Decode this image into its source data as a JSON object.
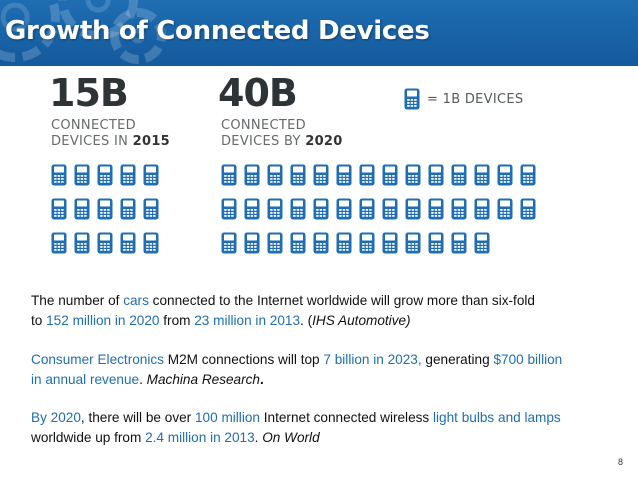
{
  "slide": {
    "title": "Growth of Connected Devices",
    "page_number": "8"
  },
  "infographic": {
    "left": {
      "value": "15B",
      "caption_line1": "CONNECTED",
      "caption_line2_prefix": "DEVICES IN ",
      "caption_line2_bold": "2015",
      "icon_count": 15,
      "columns": 5
    },
    "right": {
      "value": "40B",
      "caption_line1": "CONNECTED",
      "caption_line2_prefix": "DEVICES BY ",
      "caption_line2_bold": "2020",
      "icon_count": 40,
      "columns": 14
    },
    "legend": {
      "text": "= 1B DEVICES",
      "icon": "mobile-phone-icon"
    },
    "icon_color": "#1f6db3"
  },
  "paragraphs": {
    "p1": {
      "t1": "The number of ",
      "t2": "cars",
      "t3": " connected to the Internet worldwide will grow more than six-fold",
      "t4": "to ",
      "t5": "152 million in 2020",
      "t6": " from ",
      "t7": "23 million in 2013",
      "t8": ".  (",
      "t9": "IHS Automotive)"
    },
    "p2": {
      "t1": "Consumer Electronics",
      "t2": " M2M connections will top ",
      "t3": "7 billion in 2023,",
      "t4": " generating ",
      "t5": "$700 billion",
      "t6": "in annual revenue",
      "t7": ". ",
      "t8": "Machina Research",
      "t9": "."
    },
    "p3": {
      "t1": "By 2020",
      "t2": ", there will be over ",
      "t3": "100 million",
      "t4": " Internet connected wireless ",
      "t5": "light bulbs and lamps",
      "t6": "worldwide up from ",
      "t7": "2.4 million in 2013",
      "t8": ". ",
      "t9": "On World"
    }
  },
  "colors": {
    "header": "#1f6db3",
    "highlight": "#1f6db3"
  }
}
